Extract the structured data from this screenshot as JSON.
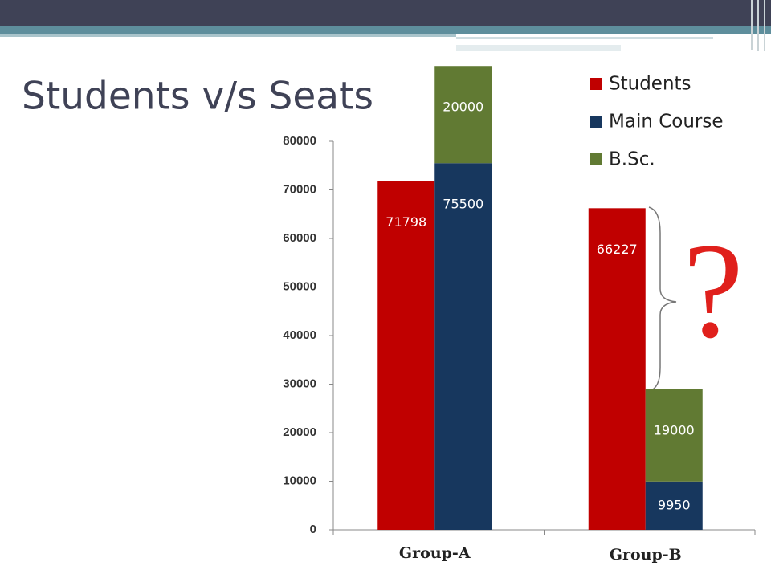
{
  "chart_data": {
    "type": "bar",
    "title": "Students v/s Seats",
    "categories": [
      "Group-A",
      "Group-B"
    ],
    "series": [
      {
        "name": "Students",
        "color": "#c00000",
        "values": [
          71798,
          66227
        ]
      },
      {
        "name": "Main Course",
        "color": "#17375e",
        "values": [
          75500,
          9950
        ]
      },
      {
        "name": "B.Sc.",
        "color": "#617a33",
        "values": [
          20000,
          19000
        ]
      }
    ],
    "ylim": [
      0,
      80000
    ],
    "yticks": [
      0,
      10000,
      20000,
      30000,
      40000,
      50000,
      60000,
      70000,
      80000
    ],
    "annotation": "?"
  }
}
